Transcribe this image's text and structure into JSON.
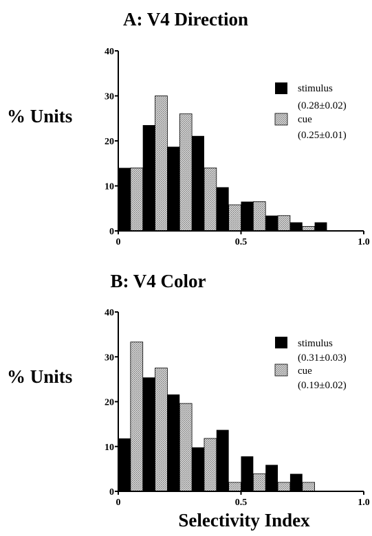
{
  "colors": {
    "stimulus": "#000000",
    "cue": "#b8b8b8",
    "axis": "#000000"
  },
  "xlabel": "Selectivity   Index",
  "chart_data": [
    {
      "type": "bar",
      "title": "A:  V4  Direction",
      "ylabel": "% Units",
      "xlim": [
        0,
        1.0
      ],
      "ylim": [
        0,
        40
      ],
      "bin_width": 0.05,
      "x_ticks": [
        "0",
        "0.5",
        "1.0"
      ],
      "y_ticks": [
        "0",
        "10",
        "20",
        "30",
        "40"
      ],
      "series": [
        {
          "name": "stimulus",
          "stat": "(0.28±0.02)",
          "bins": [
            [
              0.0,
              14
            ],
            [
              0.1,
              23.5
            ],
            [
              0.2,
              18.7
            ],
            [
              0.3,
              21.1
            ],
            [
              0.4,
              9.7
            ],
            [
              0.5,
              6.5
            ],
            [
              0.6,
              3.4
            ],
            [
              0.7,
              1.9
            ],
            [
              0.8,
              1.9
            ]
          ]
        },
        {
          "name": "cue",
          "stat": "(0.25±0.01)",
          "bins": [
            [
              0.05,
              14
            ],
            [
              0.15,
              30
            ],
            [
              0.25,
              26
            ],
            [
              0.35,
              14
            ],
            [
              0.45,
              5.8
            ],
            [
              0.55,
              6.5
            ],
            [
              0.65,
              3.4
            ],
            [
              0.75,
              1
            ]
          ]
        }
      ]
    },
    {
      "type": "bar",
      "title": "B:  V4  Color",
      "ylabel": "% Units",
      "xlim": [
        0,
        1.0
      ],
      "ylim": [
        0,
        40
      ],
      "bin_width": 0.05,
      "x_ticks": [
        "0",
        "0.5",
        "1.0"
      ],
      "y_ticks": [
        "0",
        "10",
        "20",
        "30",
        "40"
      ],
      "series": [
        {
          "name": "stimulus",
          "stat": "(0.31±0.03)",
          "bins": [
            [
              0.0,
              11.8
            ],
            [
              0.1,
              25.4
            ],
            [
              0.2,
              21.6
            ],
            [
              0.3,
              9.8
            ],
            [
              0.4,
              13.7
            ],
            [
              0.5,
              7.8
            ],
            [
              0.6,
              5.9
            ],
            [
              0.7,
              3.9
            ]
          ]
        },
        {
          "name": "cue",
          "stat": "(0.19±0.02)",
          "bins": [
            [
              0.05,
              33.3
            ],
            [
              0.15,
              27.5
            ],
            [
              0.25,
              19.6
            ],
            [
              0.35,
              11.8
            ],
            [
              0.45,
              2
            ],
            [
              0.55,
              3.9
            ],
            [
              0.65,
              2
            ],
            [
              0.75,
              2
            ]
          ]
        }
      ]
    }
  ]
}
